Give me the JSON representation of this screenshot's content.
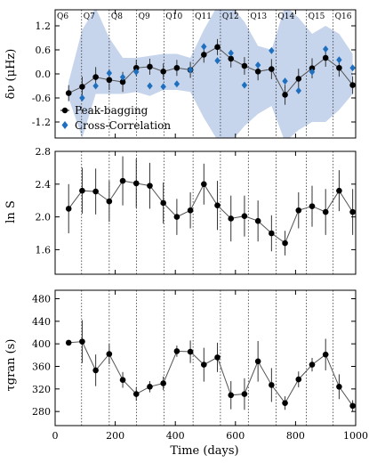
{
  "chart_data": [
    {
      "type": "scatter",
      "ylabel": "δν (μHz)",
      "ylim": [
        -1.6,
        1.6
      ],
      "yticks": [
        -1.2,
        -0.6,
        0.0,
        0.6,
        1.2
      ],
      "xlim": [
        0,
        1000
      ],
      "quarter_labels": [
        "Q6",
        "Q7",
        "Q8",
        "Q9",
        "Q10",
        "Q11",
        "Q12",
        "Q13",
        "Q14",
        "Q15",
        "Q16"
      ],
      "quarter_boundaries": [
        88,
        180,
        271,
        362,
        459,
        550,
        643,
        735,
        836,
        925
      ],
      "band": {
        "color": "#c6d4ec",
        "x": [
          45,
          90,
          135,
          180,
          225,
          270,
          315,
          360,
          405,
          450,
          495,
          540,
          585,
          630,
          675,
          720,
          765,
          810,
          855,
          900,
          945,
          990
        ],
        "lower": [
          -0.6,
          -1.6,
          -0.5,
          -0.5,
          -0.5,
          -0.45,
          -0.55,
          -0.4,
          -0.4,
          -0.45,
          -1.1,
          -1.65,
          -1.7,
          -1.3,
          -1.0,
          -0.8,
          -1.7,
          -1.4,
          -1.2,
          -1.2,
          -0.9,
          -0.5
        ],
        "upper": [
          -0.2,
          1.1,
          1.65,
          0.9,
          0.4,
          0.4,
          0.45,
          0.5,
          0.5,
          0.4,
          1.1,
          1.7,
          1.7,
          1.3,
          0.7,
          0.6,
          1.7,
          1.4,
          1.0,
          1.2,
          1.0,
          0.5
        ]
      },
      "series": [
        {
          "name": "Peak-bagging",
          "color": "#000000",
          "marker": "circle",
          "connected": true,
          "x": [
            45,
            90,
            135,
            180,
            225,
            270,
            315,
            360,
            405,
            450,
            495,
            540,
            585,
            630,
            675,
            720,
            765,
            810,
            855,
            900,
            945,
            990
          ],
          "y": [
            -0.48,
            -0.32,
            -0.08,
            -0.15,
            -0.2,
            0.15,
            0.18,
            0.06,
            0.15,
            0.1,
            0.48,
            0.67,
            0.38,
            0.2,
            0.06,
            0.12,
            -0.52,
            -0.12,
            0.14,
            0.4,
            0.15,
            -0.28
          ],
          "yerr": [
            0.2,
            0.25,
            0.25,
            0.25,
            0.25,
            0.2,
            0.2,
            0.2,
            0.2,
            0.2,
            0.2,
            0.2,
            0.22,
            0.22,
            0.22,
            0.25,
            0.25,
            0.25,
            0.25,
            0.22,
            0.22,
            0.22
          ]
        },
        {
          "name": "Cross-Correlation",
          "color": "#1f6fbf",
          "marker": "diamond",
          "connected": false,
          "x": [
            90,
            135,
            180,
            225,
            270,
            315,
            360,
            405,
            450,
            495,
            540,
            585,
            630,
            675,
            720,
            765,
            810,
            855,
            900,
            945,
            990
          ],
          "y": [
            -0.6,
            -0.3,
            0.02,
            -0.08,
            0.05,
            -0.3,
            -0.32,
            -0.25,
            0.1,
            0.68,
            0.33,
            0.52,
            -0.28,
            0.22,
            0.58,
            -0.18,
            -0.42,
            0.05,
            0.62,
            0.35,
            0.15
          ]
        }
      ]
    },
    {
      "type": "line",
      "ylabel": "ln S",
      "ylim": [
        1.3,
        2.8
      ],
      "yticks": [
        1.6,
        2.0,
        2.4,
        2.8
      ],
      "xlim": [
        0,
        1000
      ],
      "series": [
        {
          "name": "",
          "color": "#000000",
          "marker": "circle",
          "x": [
            45,
            90,
            135,
            180,
            225,
            270,
            315,
            360,
            405,
            450,
            495,
            540,
            585,
            630,
            675,
            720,
            765,
            810,
            855,
            900,
            945,
            990
          ],
          "y": [
            2.1,
            2.32,
            2.31,
            2.19,
            2.44,
            2.41,
            2.38,
            2.17,
            2.0,
            2.08,
            2.4,
            2.14,
            1.98,
            2.01,
            1.95,
            1.8,
            1.68,
            2.08,
            2.13,
            2.06,
            2.32,
            2.06
          ],
          "yerr": [
            0.3,
            0.28,
            0.28,
            0.25,
            0.3,
            0.3,
            0.28,
            0.25,
            0.22,
            0.22,
            0.25,
            0.3,
            0.28,
            0.25,
            0.25,
            0.22,
            0.15,
            0.22,
            0.25,
            0.28,
            0.25,
            0.28
          ]
        }
      ]
    },
    {
      "type": "line",
      "ylabel": "τgran (s)",
      "ylim": [
        255,
        495
      ],
      "yticks": [
        280,
        320,
        360,
        400,
        440,
        480
      ],
      "xlim": [
        0,
        1000
      ],
      "xticks": [
        0,
        200,
        400,
        600,
        800,
        1000
      ],
      "xlabel": "Time (days)",
      "series": [
        {
          "name": "",
          "color": "#000000",
          "marker": "circle",
          "x": [
            45,
            90,
            135,
            180,
            225,
            270,
            315,
            360,
            405,
            450,
            495,
            540,
            585,
            630,
            675,
            720,
            765,
            810,
            855,
            900,
            945,
            990
          ],
          "y": [
            402,
            404,
            353,
            382,
            336,
            311,
            324,
            330,
            387,
            386,
            363,
            376,
            309,
            311,
            369,
            327,
            295,
            337,
            363,
            381,
            324,
            290
          ],
          "yerr": [
            4,
            38,
            28,
            18,
            14,
            12,
            10,
            12,
            10,
            20,
            30,
            26,
            25,
            28,
            36,
            30,
            12,
            14,
            12,
            28,
            22,
            10
          ]
        }
      ]
    }
  ]
}
